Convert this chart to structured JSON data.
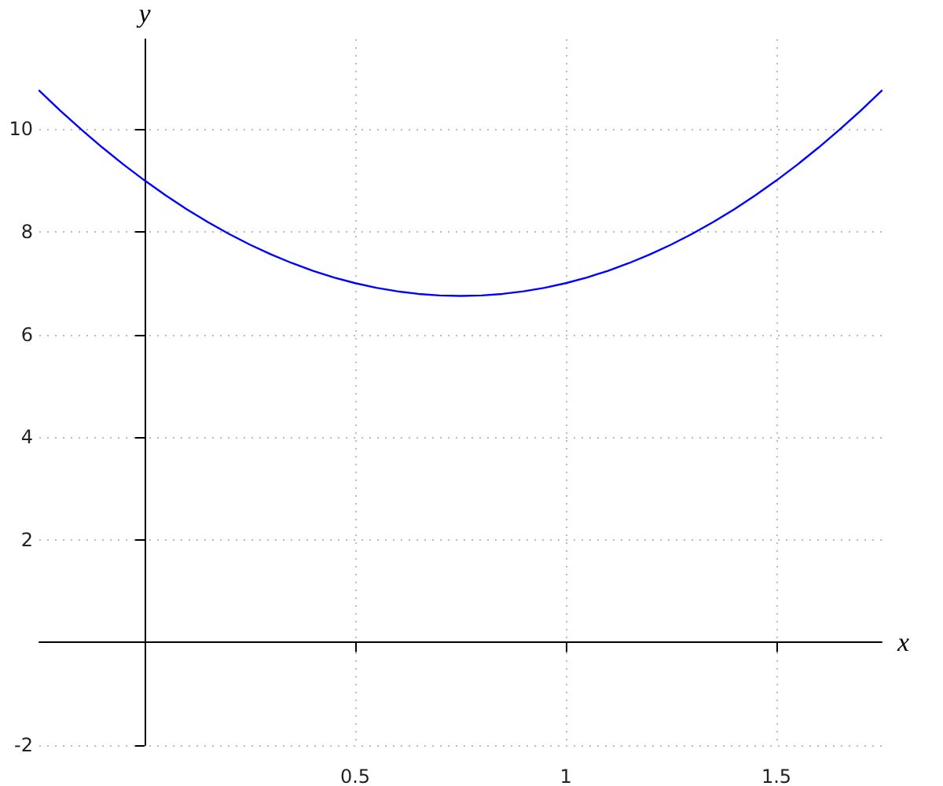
{
  "chart_data": {
    "type": "line",
    "xlabel": "x",
    "ylabel": "y",
    "x": [
      -0.25,
      -0.2,
      -0.15,
      -0.1,
      -0.05,
      0,
      0.05,
      0.1,
      0.15,
      0.2,
      0.25,
      0.3,
      0.35,
      0.4,
      0.45,
      0.5,
      0.55,
      0.6,
      0.65,
      0.7,
      0.75,
      0.8,
      0.85,
      0.9,
      0.95,
      1,
      1.05,
      1.1,
      1.15,
      1.2,
      1.25,
      1.3,
      1.35,
      1.4,
      1.45,
      1.5,
      1.55,
      1.6,
      1.65,
      1.7,
      1.75
    ],
    "series": [
      {
        "color": "#0000ff",
        "values": [
          10.75,
          10.36,
          9.99,
          9.64,
          9.31,
          9,
          8.71,
          8.44,
          8.19,
          7.96,
          7.75,
          7.56,
          7.39,
          7.24,
          7.11,
          7,
          6.91,
          6.84,
          6.79,
          6.76,
          6.75,
          6.76,
          6.79,
          6.84,
          6.91,
          7,
          7.11,
          7.24,
          7.39,
          7.56,
          7.75,
          7.96,
          8.19,
          8.44,
          8.71,
          9,
          9.31,
          9.64,
          9.99,
          10.36,
          10.75
        ]
      }
    ],
    "xlim": [
      -0.25,
      1.75
    ],
    "ylim": [
      -2,
      11.75
    ],
    "xticks": [
      0.5,
      1,
      1.5
    ],
    "yticks": [
      -2,
      2,
      4,
      6,
      8,
      10
    ],
    "grid": true
  }
}
